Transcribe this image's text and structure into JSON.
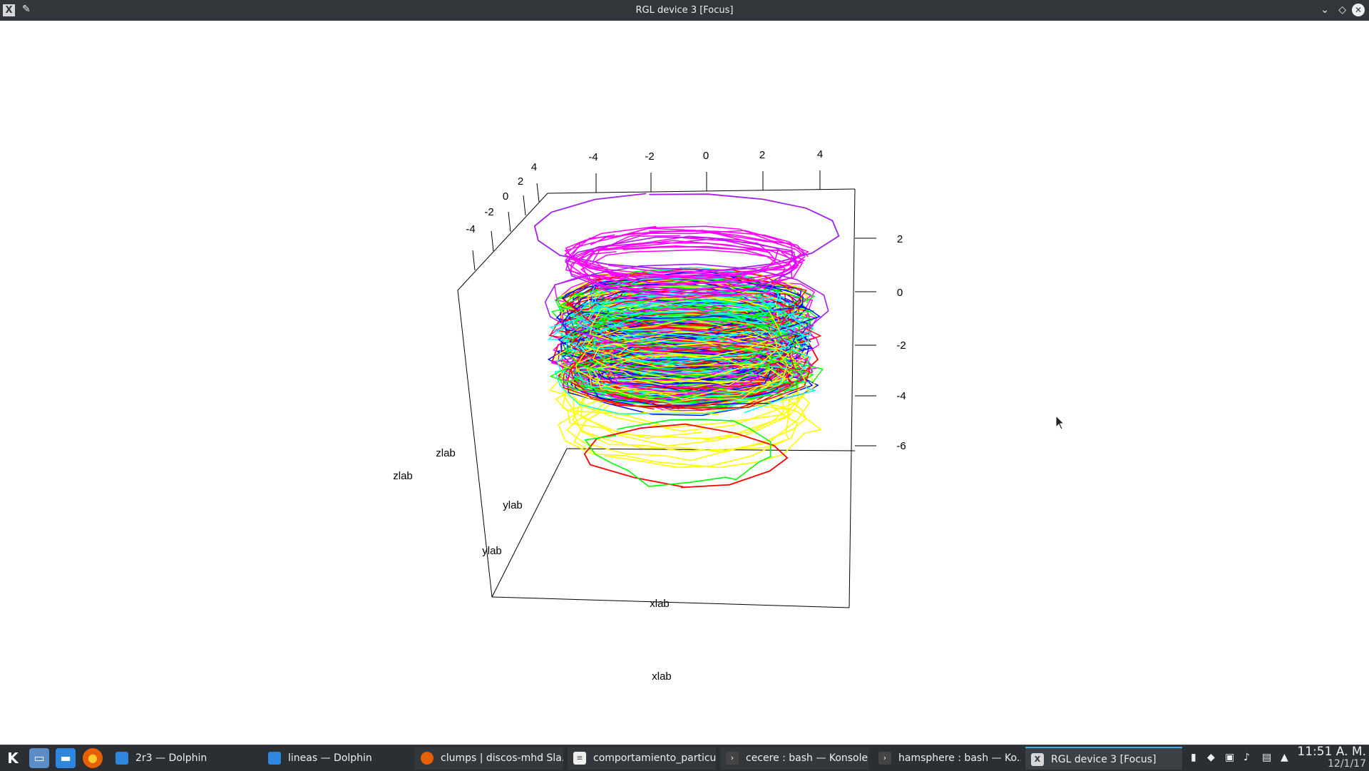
{
  "window": {
    "title": "RGL device 3 [Focus]"
  },
  "titlebar": {
    "app_icon": "x-window-icon",
    "pin_icon": "pin-icon",
    "minimize_icon": "chevron-down-icon",
    "maximize_icon": "diamond-icon",
    "close_icon": "close-icon"
  },
  "plot": {
    "x_ticks": [
      "-4",
      "-2",
      "0",
      "2",
      "4"
    ],
    "y_ticks": [
      "-4",
      "-2",
      "0",
      "2",
      "4"
    ],
    "z_ticks": [
      "2",
      "0",
      "-2",
      "-4",
      "-6"
    ],
    "labels": {
      "zlab_1": "zlab",
      "zlab_2": "zlab",
      "ylab_1": "ylab",
      "ylab_2": "ylab",
      "xlab_1": "xlab",
      "xlab_2": "xlab"
    },
    "colors": [
      "#ff0000",
      "#ffff00",
      "#00ff00",
      "#00ffff",
      "#0000ff",
      "#ff00ff",
      "#a020f0"
    ]
  },
  "taskbar": {
    "launchers": [
      {
        "name": "kde-menu-icon",
        "glyph": "K"
      },
      {
        "name": "desktop-icon",
        "glyph": "▭"
      },
      {
        "name": "folder-icon",
        "glyph": "▬"
      },
      {
        "name": "firefox-icon",
        "glyph": "●"
      }
    ],
    "tasks": [
      {
        "label": "2r3 — Dolphin",
        "icon": "folder-icon"
      },
      {
        "label": "lineas — Dolphin",
        "icon": "folder-icon"
      },
      {
        "label": "clumps | discos-mhd Sla...",
        "icon": "firefox-icon"
      },
      {
        "label": "comportamiento_particu...",
        "icon": "document-icon"
      },
      {
        "label": "cecere : bash — Konsole",
        "icon": "terminal-icon"
      },
      {
        "label": "hamsphere : bash — Ko...",
        "icon": "terminal-icon"
      },
      {
        "label": "RGL device 3 [Focus]",
        "icon": "x-window-icon"
      }
    ],
    "tray_icons": [
      "usb-icon",
      "dropbox-icon",
      "network-icon",
      "volume-icon",
      "clipboard-icon",
      "expand-up-icon"
    ],
    "clock": {
      "time": "11:51 A. M.",
      "date": "12/1/17"
    }
  }
}
